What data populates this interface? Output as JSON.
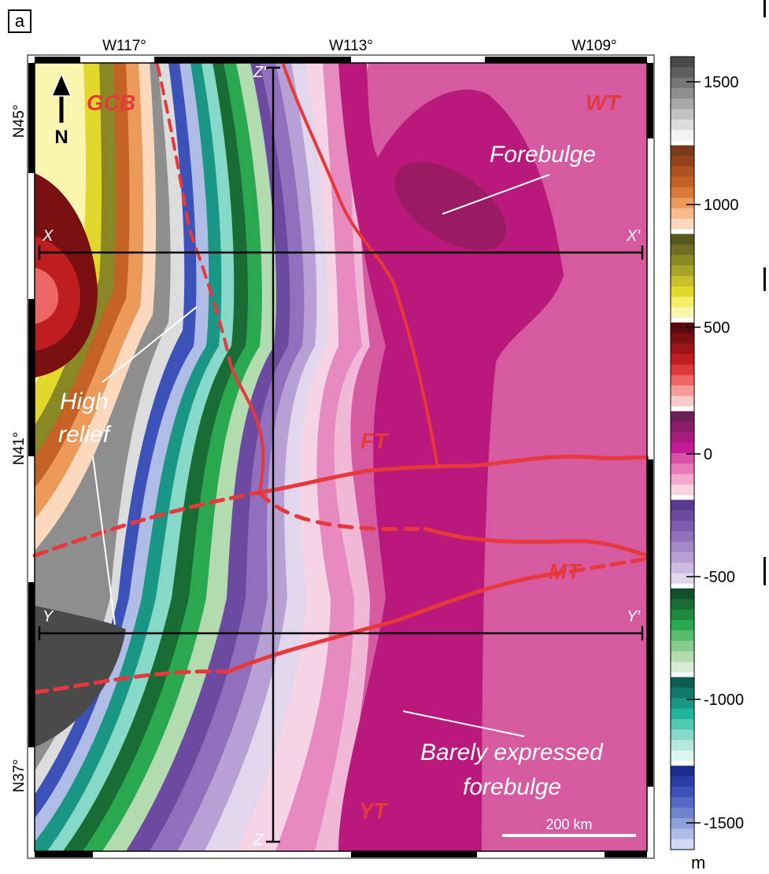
{
  "panel_label": "a",
  "longitude_labels": [
    "W117°",
    "W113°",
    "W109°"
  ],
  "latitude_labels": [
    "N45°",
    "N41°",
    "N37°"
  ],
  "north_arrow_label": "N",
  "feature_labels": {
    "gcb": "GCB",
    "wt": "WT",
    "ft": "FT",
    "mt": "MT",
    "yt": "YT"
  },
  "annotations": {
    "forebulge": "Forebulge",
    "high_relief_line1": "High",
    "high_relief_line2": "relief",
    "barely_line1": "Barely expressed",
    "barely_line2": "forebulge"
  },
  "profile_labels": {
    "x_start": "X",
    "x_end": "X′",
    "y_start": "Y",
    "y_end": "Y′",
    "z_start": "Z′",
    "z_end": "Z"
  },
  "scale_bar": {
    "label": "200 km"
  },
  "colorbar": {
    "unit": "m",
    "tick_labels": [
      "1500",
      "1000",
      "500",
      "0",
      "-500",
      "-1000",
      "-1500"
    ],
    "colors": [
      "#4a4a4a",
      "#5e5e5e",
      "#767676",
      "#8e8e8e",
      "#a8a8a8",
      "#c2c2c2",
      "#dcdcdc",
      "#f2f2f2",
      "#7a3a1a",
      "#94421c",
      "#ad5220",
      "#c46226",
      "#d87a36",
      "#eb9a5a",
      "#f8ba8c",
      "#fcd8bc",
      "#57581e",
      "#6f6e22",
      "#8a8824",
      "#a8a428",
      "#c6c02a",
      "#e2d82c",
      "#f4ec6a",
      "#faf6b0",
      "#5a0a0c",
      "#7a1012",
      "#9c1618",
      "#be1e20",
      "#dc3a3a",
      "#ee6666",
      "#f69a9a",
      "#fbcaca",
      "#6e1f56",
      "#8a1d6a",
      "#a81c80",
      "#c41c96",
      "#da4fa8",
      "#e87ab8",
      "#f3a8cc",
      "#fad2e2",
      "#5a3a8e",
      "#6c4aa0",
      "#7e5cb0",
      "#9070bc",
      "#a488c8",
      "#b8a0d4",
      "#ccbae0",
      "#e2d6ec",
      "#12502c",
      "#186c34",
      "#1e8a3e",
      "#2aa850",
      "#58bc6c",
      "#86cc8e",
      "#b2dcb0",
      "#d8ecd4",
      "#0e5c52",
      "#12786a",
      "#1a9684",
      "#20b49c",
      "#52c8b2",
      "#86d8c8",
      "#b4e8de",
      "#dcf4ee",
      "#1e2c8e",
      "#2c3ea6",
      "#3c52b8",
      "#5468c4",
      "#7084ce",
      "#8ea0da",
      "#aebce6",
      "#d0d8f2"
    ],
    "gap_color": "#ffffff"
  },
  "colors": {
    "faults": "#e8383c",
    "fault_labels": "#e53a3c",
    "annotation_text": "#ffffff",
    "profile_lines": "#000000",
    "deep_magenta": "#b8197a",
    "base_pink": "#d65aa0"
  }
}
